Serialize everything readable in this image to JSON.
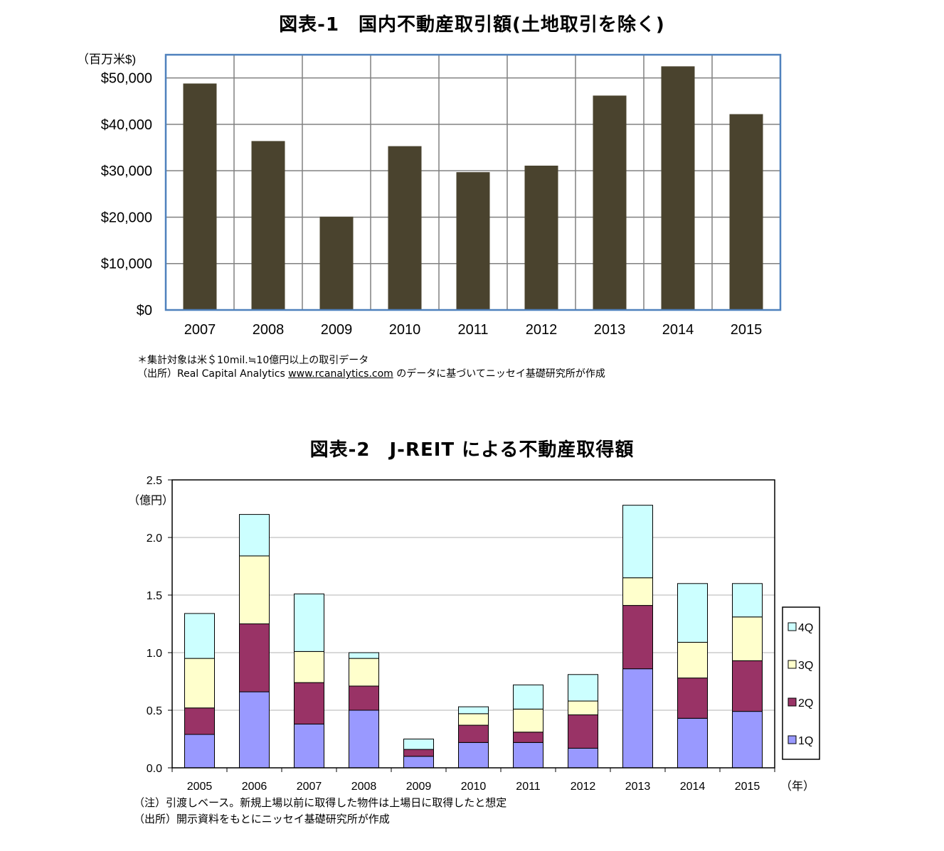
{
  "figure1": {
    "title": "図表-1　国内不動産取引額(土地取引を除く)",
    "unit_label": "（百万米$)",
    "notes": {
      "line1": "＊集計対象は米＄10mil.≒10億円以上の取引データ",
      "line2_prefix": "（出所）Real Capital Analytics ",
      "line2_link": "www.rcanalytics.com",
      "line2_suffix": " のデータに基づいてニッセイ基礎研究所が作成"
    },
    "colors": {
      "bar": "#4a432e",
      "frame": "#4f81bd",
      "grid": "#808080"
    }
  },
  "figure2": {
    "title": "図表-2　J-REIT による不動産取得額",
    "unit_label": "（億円）",
    "x_unit_label": "（年）",
    "notes": {
      "line1": "（注）引渡しベース。新規上場以前に取得した物件は上場日に取得したと想定",
      "line2": "（出所）開示資料をもとにニッセイ基礎研究所が作成"
    }
  },
  "chart_data": [
    {
      "type": "bar",
      "categories": [
        "2007",
        "2008",
        "2009",
        "2010",
        "2011",
        "2012",
        "2013",
        "2014",
        "2015"
      ],
      "values": [
        48800,
        36400,
        20100,
        35300,
        29700,
        31100,
        46200,
        52500,
        42200
      ],
      "ylim": [
        0,
        55000
      ],
      "yticks": [
        0,
        10000,
        20000,
        30000,
        40000,
        50000
      ],
      "ytick_labels": [
        "$0",
        "$10,000",
        "$20,000",
        "$30,000",
        "$40,000",
        "$50,000"
      ],
      "grid": true
    },
    {
      "type": "bar",
      "stacked": true,
      "categories": [
        "2005",
        "2006",
        "2007",
        "2008",
        "2009",
        "2010",
        "2011",
        "2012",
        "2013",
        "2014",
        "2015"
      ],
      "series": [
        {
          "name": "1Q",
          "color": "#9999ff",
          "values": [
            0.29,
            0.66,
            0.38,
            0.5,
            0.1,
            0.22,
            0.22,
            0.17,
            0.86,
            0.43,
            0.49
          ]
        },
        {
          "name": "2Q",
          "color": "#993366",
          "values": [
            0.23,
            0.59,
            0.36,
            0.21,
            0.06,
            0.15,
            0.09,
            0.29,
            0.55,
            0.35,
            0.44
          ]
        },
        {
          "name": "3Q",
          "color": "#ffffcc",
          "values": [
            0.43,
            0.59,
            0.27,
            0.24,
            0.0,
            0.1,
            0.2,
            0.12,
            0.24,
            0.31,
            0.38
          ]
        },
        {
          "name": "4Q",
          "color": "#ccffff",
          "values": [
            0.39,
            0.36,
            0.5,
            0.05,
            0.09,
            0.06,
            0.21,
            0.23,
            0.63,
            0.51,
            0.29
          ]
        }
      ],
      "ylim": [
        0,
        2.5
      ],
      "yticks": [
        0,
        0.5,
        1.0,
        1.5,
        2.0,
        2.5
      ],
      "ytick_labels": [
        "0.0",
        "0.5",
        "1.0",
        "1.5",
        "2.0",
        "2.5"
      ],
      "grid": true,
      "legend_position": "right"
    }
  ]
}
